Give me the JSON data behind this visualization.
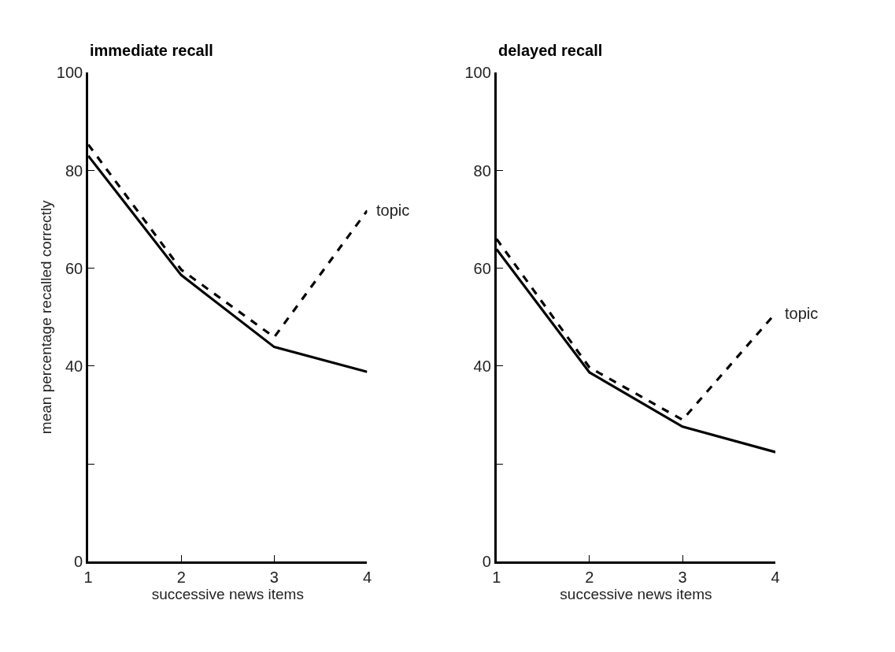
{
  "chart_data": [
    {
      "type": "line",
      "title": "immediate recall",
      "xlabel": "successive news items",
      "ylabel": "mean percentage recalled correctly",
      "x": [
        1,
        2,
        3,
        4
      ],
      "xlim": [
        1,
        4
      ],
      "xticks": [
        1,
        2,
        3,
        4
      ],
      "ylim": [
        0,
        100
      ],
      "yticks": [
        0,
        {
          "value": 20,
          "label": null
        },
        40,
        60,
        80,
        100
      ],
      "series": [
        {
          "color": "#000000",
          "line_style": "solid",
          "values": [
            83,
            58.6,
            43.9,
            38.8
          ]
        },
        {
          "color": "#000000",
          "line_style": "dashed",
          "values": [
            85.3,
            59.7,
            45.9,
            71.8
          ]
        }
      ],
      "annotations": [
        {
          "text": "topic",
          "x": 4,
          "y": 71.8
        }
      ]
    },
    {
      "type": "line",
      "title": "delayed recall",
      "xlabel": "successive news items",
      "x": [
        1,
        2,
        3,
        4
      ],
      "xlim": [
        1,
        4
      ],
      "xticks": [
        1,
        2,
        3,
        4
      ],
      "ylim": [
        0,
        100
      ],
      "yticks": [
        0,
        {
          "value": 20,
          "label": null
        },
        40,
        60,
        80,
        100
      ],
      "series": [
        {
          "color": "#000000",
          "line_style": "solid",
          "values": [
            63.9,
            38.7,
            27.6,
            22.4
          ]
        },
        {
          "color": "#000000",
          "line_style": "dashed",
          "values": [
            66,
            39.7,
            29,
            50.8
          ]
        }
      ],
      "annotations": [
        {
          "text": "topic",
          "x": 4,
          "y": 50.8
        }
      ]
    }
  ]
}
